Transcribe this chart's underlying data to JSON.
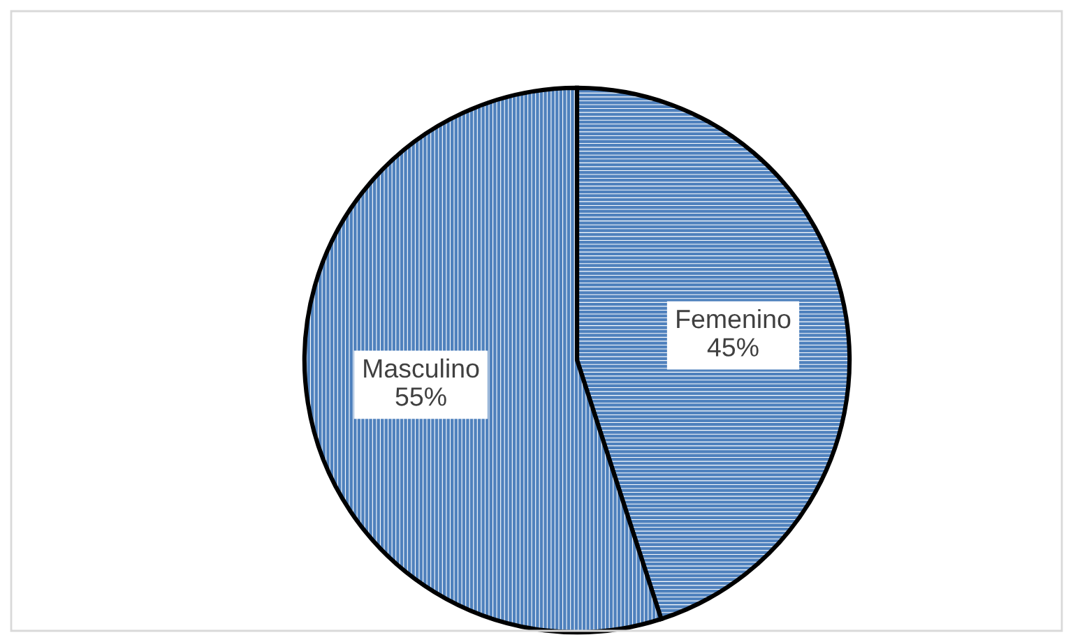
{
  "chart_data": {
    "type": "pie",
    "categories": [
      "Femenino",
      "Masculino"
    ],
    "values": [
      45,
      55
    ],
    "value_labels": [
      "45%",
      "55%"
    ],
    "colors": [
      "#4f81bd",
      "#4f81bd"
    ]
  }
}
